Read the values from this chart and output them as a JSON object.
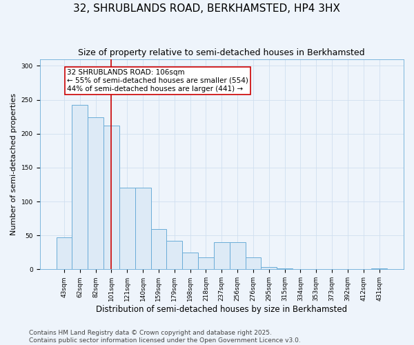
{
  "title": "32, SHRUBLANDS ROAD, BERKHAMSTED, HP4 3HX",
  "subtitle": "Size of property relative to semi-detached houses in Berkhamsted",
  "xlabel": "Distribution of semi-detached houses by size in Berkhamsted",
  "ylabel": "Number of semi-detached properties",
  "categories": [
    "43sqm",
    "62sqm",
    "82sqm",
    "101sqm",
    "121sqm",
    "140sqm",
    "159sqm",
    "179sqm",
    "198sqm",
    "218sqm",
    "237sqm",
    "256sqm",
    "276sqm",
    "295sqm",
    "315sqm",
    "334sqm",
    "353sqm",
    "373sqm",
    "392sqm",
    "412sqm",
    "431sqm"
  ],
  "values": [
    47,
    242,
    224,
    212,
    120,
    120,
    59,
    42,
    25,
    18,
    40,
    40,
    18,
    3,
    1,
    0,
    0,
    0,
    0,
    0,
    1
  ],
  "bar_color": "#ddeaf6",
  "bar_edge_color": "#6aacd8",
  "red_line_index": 3,
  "annotation_text": "32 SHRUBLANDS ROAD: 106sqm\n← 55% of semi-detached houses are smaller (554)\n44% of semi-detached houses are larger (441) →",
  "annotation_box_color": "#ffffff",
  "annotation_box_edge": "#cc0000",
  "red_line_color": "#cc0000",
  "ylim": [
    0,
    310
  ],
  "yticks": [
    0,
    50,
    100,
    150,
    200,
    250,
    300
  ],
  "footer_text": "Contains HM Land Registry data © Crown copyright and database right 2025.\nContains public sector information licensed under the Open Government Licence v3.0.",
  "background_color": "#eef4fb",
  "grid_color": "#d0dff0",
  "title_fontsize": 11,
  "subtitle_fontsize": 9,
  "tick_fontsize": 6.5,
  "ylabel_fontsize": 8,
  "xlabel_fontsize": 8.5,
  "annotation_fontsize": 7.5,
  "footer_fontsize": 6.5
}
